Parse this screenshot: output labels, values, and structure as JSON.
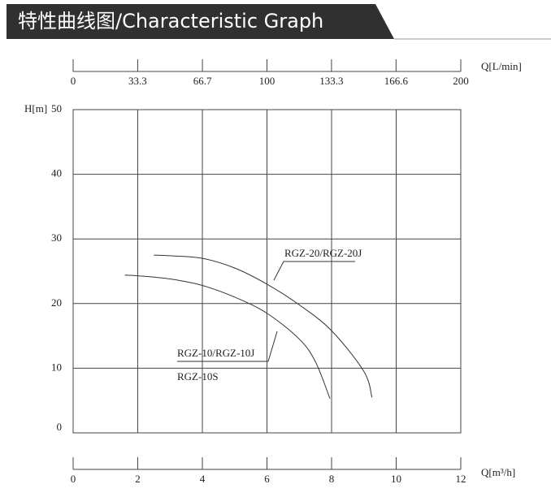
{
  "chart_data": {
    "type": "line",
    "title": "特性曲线图/Characteristic Graph",
    "x_label": "Q[m³/h]",
    "x2_label": "Q[L/min]",
    "y_label": "H[m]",
    "xlim": [
      0,
      12
    ],
    "xticks": [
      0,
      2,
      4,
      6,
      8,
      10,
      12
    ],
    "x2lim": [
      0,
      200
    ],
    "x2ticks": [
      0,
      33.3,
      66.7,
      100,
      133.3,
      166.6,
      200
    ],
    "ylim": [
      0,
      50
    ],
    "yticks": [
      0,
      10,
      20,
      30,
      40,
      50
    ],
    "grid": true,
    "series": [
      {
        "name": "RGZ-20/RGZ-20J",
        "color": "#333333",
        "x": [
          2.5,
          3,
          4,
          5,
          6,
          7,
          8,
          9,
          9.25
        ],
        "values": [
          27.5,
          27.4,
          27,
          25.5,
          23,
          19.8,
          15.8,
          9.5,
          5.5
        ]
      },
      {
        "name": "RGZ-10/RGZ-10J",
        "color": "#333333",
        "x": [
          1.6,
          2,
          3,
          4,
          5,
          6,
          7,
          7.5,
          7.95
        ],
        "values": [
          24.4,
          24.3,
          23.8,
          22.8,
          21,
          18.5,
          14.5,
          11,
          5.3
        ]
      }
    ],
    "annotations": [
      "RGZ-10S"
    ]
  }
}
